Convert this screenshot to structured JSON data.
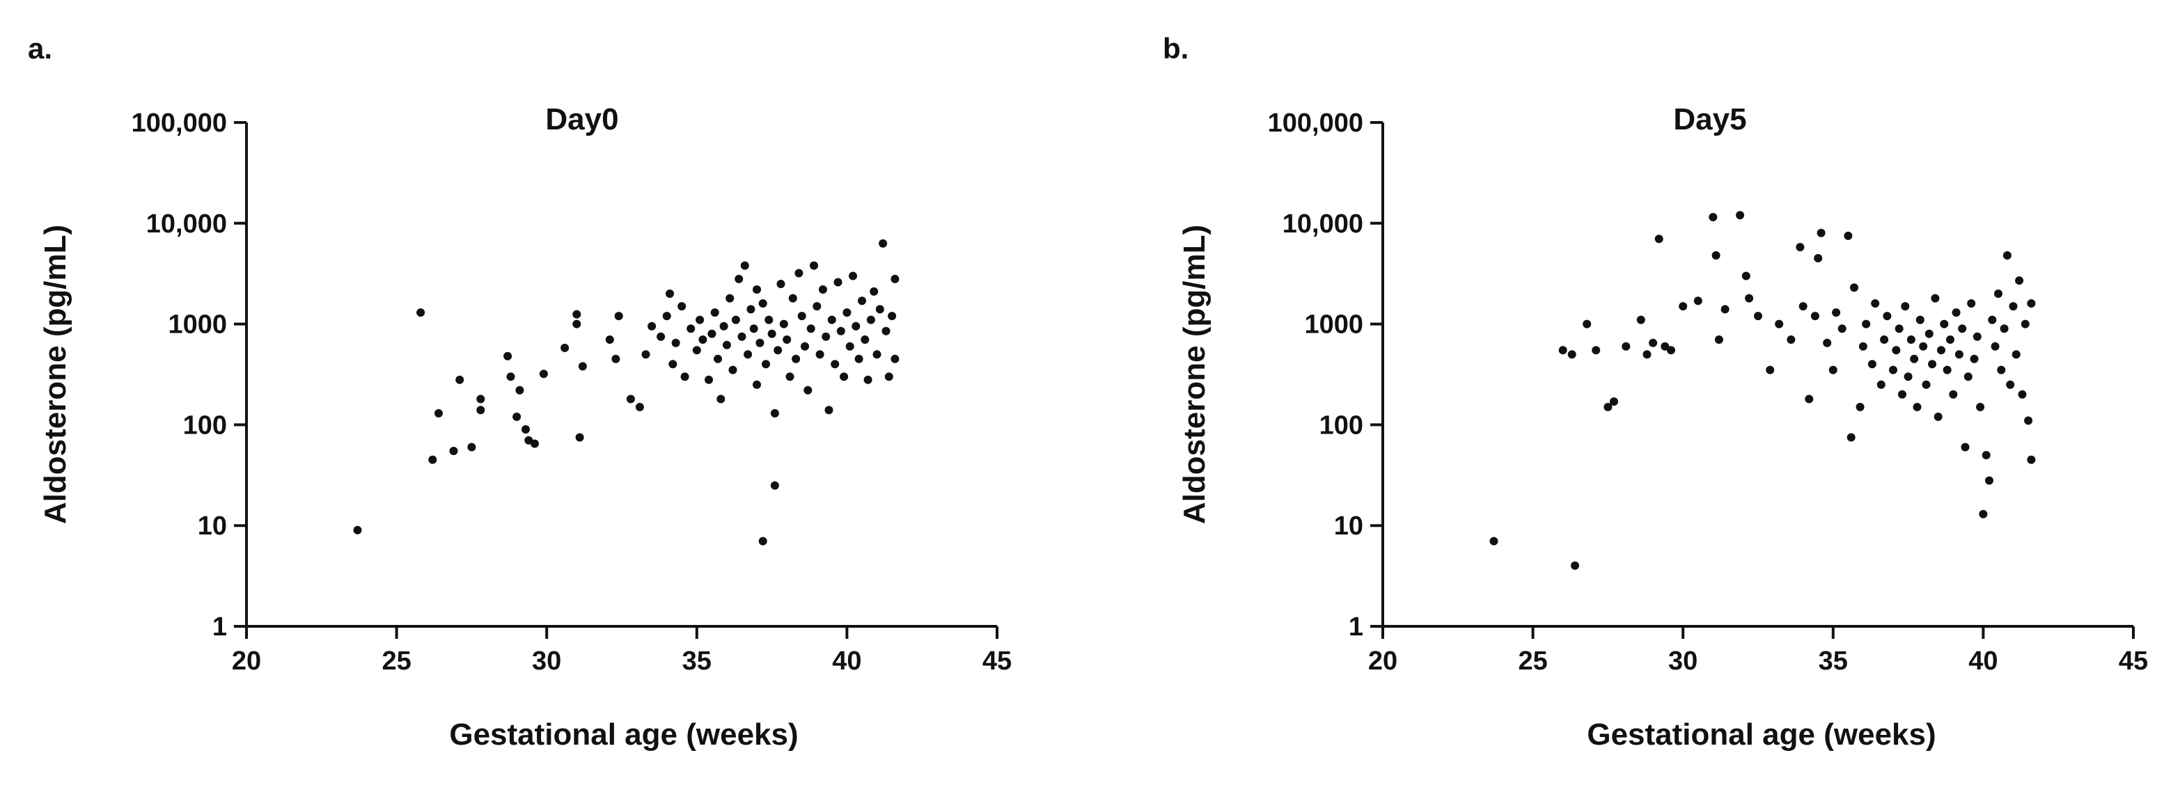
{
  "chart_data": [
    {
      "type": "scatter",
      "panel_label": "a.",
      "title": "Day0",
      "xlabel": "Gestational age (weeks)",
      "ylabel": "Aldosterone (pg/mL)",
      "x_ticks": [
        20,
        25,
        30,
        35,
        40,
        45
      ],
      "x_tick_labels": [
        "20",
        "25",
        "30",
        "35",
        "40",
        "45"
      ],
      "y_ticks": [
        1,
        10,
        100,
        1000,
        10000,
        100000
      ],
      "y_tick_labels": [
        "1",
        "10",
        "100",
        "1000",
        "10,000",
        "100,000"
      ],
      "xlim": [
        20,
        45
      ],
      "ylim": [
        1,
        100000
      ],
      "yscale": "log",
      "grid": false,
      "legend": "none",
      "marker_color": "#111111",
      "series": [
        {
          "points": [
            [
              23.7,
              9
            ],
            [
              25.8,
              1300
            ],
            [
              26.2,
              45
            ],
            [
              26.4,
              130
            ],
            [
              26.9,
              55
            ],
            [
              27.1,
              280
            ],
            [
              27.5,
              60
            ],
            [
              27.8,
              180
            ],
            [
              27.8,
              140
            ],
            [
              28.7,
              480
            ],
            [
              28.8,
              300
            ],
            [
              29.0,
              120
            ],
            [
              29.1,
              220
            ],
            [
              29.3,
              90
            ],
            [
              29.4,
              70
            ],
            [
              29.6,
              65
            ],
            [
              29.9,
              320
            ],
            [
              30.6,
              580
            ],
            [
              31.0,
              1250
            ],
            [
              31.0,
              1000
            ],
            [
              31.1,
              75
            ],
            [
              31.2,
              380
            ],
            [
              32.1,
              700
            ],
            [
              32.3,
              450
            ],
            [
              32.4,
              1200
            ],
            [
              32.8,
              180
            ],
            [
              33.1,
              150
            ],
            [
              33.3,
              500
            ],
            [
              33.5,
              950
            ],
            [
              33.8,
              750
            ],
            [
              34.0,
              1200
            ],
            [
              34.1,
              2000
            ],
            [
              34.2,
              400
            ],
            [
              34.3,
              650
            ],
            [
              34.5,
              1500
            ],
            [
              34.6,
              300
            ],
            [
              34.8,
              900
            ],
            [
              35.0,
              550
            ],
            [
              35.1,
              1100
            ],
            [
              35.2,
              700
            ],
            [
              35.4,
              280
            ],
            [
              35.5,
              800
            ],
            [
              35.6,
              1300
            ],
            [
              35.7,
              450
            ],
            [
              35.8,
              180
            ],
            [
              35.9,
              950
            ],
            [
              36.0,
              620
            ],
            [
              36.1,
              1800
            ],
            [
              36.2,
              350
            ],
            [
              36.3,
              1100
            ],
            [
              36.4,
              2800
            ],
            [
              36.5,
              750
            ],
            [
              36.6,
              3800
            ],
            [
              36.7,
              500
            ],
            [
              36.8,
              1400
            ],
            [
              36.9,
              900
            ],
            [
              37.0,
              250
            ],
            [
              37.0,
              2200
            ],
            [
              37.1,
              650
            ],
            [
              37.2,
              1600
            ],
            [
              37.2,
              7
            ],
            [
              37.3,
              400
            ],
            [
              37.4,
              1100
            ],
            [
              37.5,
              800
            ],
            [
              37.6,
              130
            ],
            [
              37.6,
              25
            ],
            [
              37.7,
              550
            ],
            [
              37.8,
              2500
            ],
            [
              37.9,
              1000
            ],
            [
              38.0,
              700
            ],
            [
              38.1,
              300
            ],
            [
              38.2,
              1800
            ],
            [
              38.3,
              450
            ],
            [
              38.4,
              3200
            ],
            [
              38.5,
              1200
            ],
            [
              38.6,
              600
            ],
            [
              38.7,
              220
            ],
            [
              38.8,
              900
            ],
            [
              38.9,
              3800
            ],
            [
              39.0,
              1500
            ],
            [
              39.1,
              500
            ],
            [
              39.2,
              2200
            ],
            [
              39.3,
              750
            ],
            [
              39.4,
              140
            ],
            [
              39.5,
              1100
            ],
            [
              39.6,
              400
            ],
            [
              39.7,
              2600
            ],
            [
              39.8,
              850
            ],
            [
              39.9,
              300
            ],
            [
              40.0,
              1300
            ],
            [
              40.1,
              600
            ],
            [
              40.2,
              3000
            ],
            [
              40.3,
              950
            ],
            [
              40.4,
              450
            ],
            [
              40.5,
              1700
            ],
            [
              40.6,
              700
            ],
            [
              40.7,
              280
            ],
            [
              40.8,
              1100
            ],
            [
              40.9,
              2100
            ],
            [
              41.0,
              500
            ],
            [
              41.1,
              1400
            ],
            [
              41.2,
              6300
            ],
            [
              41.3,
              850
            ],
            [
              41.4,
              300
            ],
            [
              41.5,
              1200
            ],
            [
              41.6,
              2800
            ],
            [
              41.6,
              450
            ]
          ]
        }
      ]
    },
    {
      "type": "scatter",
      "panel_label": "b.",
      "title": "Day5",
      "xlabel": "Gestational age (weeks)",
      "ylabel": "Aldosterone (pg/mL)",
      "x_ticks": [
        20,
        25,
        30,
        35,
        40,
        45
      ],
      "x_tick_labels": [
        "20",
        "25",
        "30",
        "35",
        "40",
        "45"
      ],
      "y_ticks": [
        1,
        10,
        100,
        1000,
        10000,
        100000
      ],
      "y_tick_labels": [
        "1",
        "10",
        "100",
        "1000",
        "10,000",
        "100,000"
      ],
      "xlim": [
        20,
        45
      ],
      "ylim": [
        1,
        100000
      ],
      "yscale": "log",
      "grid": false,
      "legend": "none",
      "marker_color": "#111111",
      "series": [
        {
          "points": [
            [
              23.7,
              7
            ],
            [
              26.0,
              550
            ],
            [
              26.3,
              500
            ],
            [
              26.4,
              4
            ],
            [
              26.8,
              1000
            ],
            [
              27.1,
              550
            ],
            [
              27.5,
              150
            ],
            [
              27.7,
              170
            ],
            [
              28.1,
              600
            ],
            [
              28.6,
              1100
            ],
            [
              28.8,
              500
            ],
            [
              29.0,
              650
            ],
            [
              29.2,
              7000
            ],
            [
              29.4,
              600
            ],
            [
              29.6,
              550
            ],
            [
              30.0,
              1500
            ],
            [
              30.5,
              1700
            ],
            [
              31.0,
              11500
            ],
            [
              31.1,
              4800
            ],
            [
              31.2,
              700
            ],
            [
              31.4,
              1400
            ],
            [
              31.9,
              12000
            ],
            [
              32.1,
              3000
            ],
            [
              32.2,
              1800
            ],
            [
              32.5,
              1200
            ],
            [
              32.9,
              350
            ],
            [
              33.2,
              1000
            ],
            [
              33.6,
              700
            ],
            [
              33.9,
              5800
            ],
            [
              34.0,
              1500
            ],
            [
              34.2,
              180
            ],
            [
              34.4,
              1200
            ],
            [
              34.5,
              4500
            ],
            [
              34.6,
              8000
            ],
            [
              34.8,
              650
            ],
            [
              35.0,
              350
            ],
            [
              35.1,
              1300
            ],
            [
              35.3,
              900
            ],
            [
              35.5,
              7500
            ],
            [
              35.6,
              75
            ],
            [
              35.7,
              2300
            ],
            [
              35.9,
              150
            ],
            [
              36.0,
              600
            ],
            [
              36.1,
              1000
            ],
            [
              36.3,
              400
            ],
            [
              36.4,
              1600
            ],
            [
              36.6,
              250
            ],
            [
              36.7,
              700
            ],
            [
              36.8,
              1200
            ],
            [
              37.0,
              350
            ],
            [
              37.1,
              550
            ],
            [
              37.2,
              900
            ],
            [
              37.3,
              200
            ],
            [
              37.4,
              1500
            ],
            [
              37.5,
              300
            ],
            [
              37.6,
              700
            ],
            [
              37.7,
              450
            ],
            [
              37.8,
              150
            ],
            [
              37.9,
              1100
            ],
            [
              38.0,
              600
            ],
            [
              38.1,
              250
            ],
            [
              38.2,
              800
            ],
            [
              38.3,
              400
            ],
            [
              38.4,
              1800
            ],
            [
              38.5,
              120
            ],
            [
              38.6,
              550
            ],
            [
              38.7,
              1000
            ],
            [
              38.8,
              350
            ],
            [
              38.9,
              700
            ],
            [
              39.0,
              200
            ],
            [
              39.1,
              1300
            ],
            [
              39.2,
              500
            ],
            [
              39.3,
              900
            ],
            [
              39.4,
              60
            ],
            [
              39.5,
              300
            ],
            [
              39.6,
              1600
            ],
            [
              39.7,
              450
            ],
            [
              39.8,
              750
            ],
            [
              39.9,
              150
            ],
            [
              40.0,
              13
            ],
            [
              40.1,
              50
            ],
            [
              40.2,
              28
            ],
            [
              40.3,
              1100
            ],
            [
              40.4,
              600
            ],
            [
              40.5,
              2000
            ],
            [
              40.6,
              350
            ],
            [
              40.7,
              900
            ],
            [
              40.8,
              4800
            ],
            [
              40.9,
              250
            ],
            [
              41.0,
              1500
            ],
            [
              41.1,
              500
            ],
            [
              41.2,
              2700
            ],
            [
              41.3,
              200
            ],
            [
              41.4,
              1000
            ],
            [
              41.5,
              110
            ],
            [
              41.6,
              45
            ],
            [
              41.6,
              1600
            ]
          ]
        }
      ]
    }
  ]
}
